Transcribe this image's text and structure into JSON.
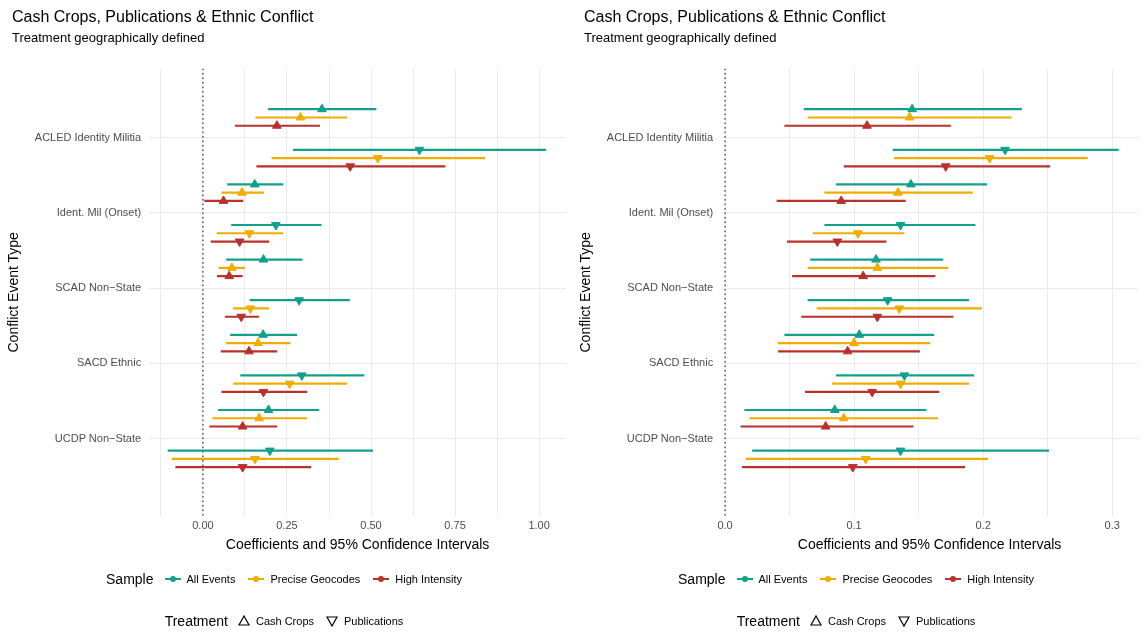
{
  "chart_data": [
    {
      "type": "scatter",
      "title": "Cash Crops, Publications & Ethnic Conflict",
      "subtitle": "Treatment geographically defined",
      "xlabel": "Coefficients and 95% Confidence Intervals",
      "ylabel": "Conflict Event Type",
      "orientation": "horizontal",
      "categories": [
        "ACLED Identity Militia",
        "Ident. Mil (Onset)",
        "SCAD Non−State",
        "SACD Ethnic",
        "UCDP Non−State"
      ],
      "xlim": [
        -0.16,
        1.08
      ],
      "xticks": [
        {
          "value": -0.125,
          "label": null
        },
        {
          "value": 0,
          "label": "0.00"
        },
        {
          "value": 0.125,
          "label": null
        },
        {
          "value": 0.25,
          "label": "0.25"
        },
        {
          "value": 0.375,
          "label": null
        },
        {
          "value": 0.5,
          "label": "0.50"
        },
        {
          "value": 0.625,
          "label": null
        },
        {
          "value": 0.75,
          "label": "0.75"
        },
        {
          "value": 0.875,
          "label": null
        },
        {
          "value": 1,
          "label": "1.00"
        }
      ],
      "grid": true,
      "legend": "bottom",
      "legend_title": "Sample",
      "annotations": [
        "Treatment",
        "Cash Crops",
        "Publications"
      ],
      "ref_lines": [
        {
          "axis": "x",
          "value": 0,
          "line_style": "dotted",
          "color": "#000000"
        }
      ],
      "series": [
        {
          "name": "All Events",
          "color": "#12a08c",
          "marker": "triangle",
          "values": [
            0.354,
            0.154,
            0.18,
            0.179,
            0.195
          ],
          "errors": [
            [
              0.194,
              0.516
            ],
            [
              0.072,
              0.239
            ],
            [
              0.069,
              0.296
            ],
            [
              0.081,
              0.28
            ],
            [
              0.045,
              0.346
            ]
          ]
        },
        {
          "name": "Precise Geocodes",
          "color": "#f0ac00",
          "marker": "triangle",
          "values": [
            0.29,
            0.116,
            0.086,
            0.164,
            0.167
          ],
          "errors": [
            [
              0.156,
              0.429
            ],
            [
              0.055,
              0.182
            ],
            [
              0.047,
              0.125
            ],
            [
              0.069,
              0.26
            ],
            [
              0.028,
              0.31
            ]
          ]
        },
        {
          "name": "High Intensity",
          "color": "#b8312b",
          "marker": "triangle",
          "values": [
            0.22,
            0.061,
            0.078,
            0.137,
            0.118
          ],
          "errors": [
            [
              0.095,
              0.348
            ],
            [
              0.004,
              0.12
            ],
            [
              0.042,
              0.118
            ],
            [
              0.053,
              0.221
            ],
            [
              0.019,
              0.221
            ]
          ]
        },
        {
          "color": "#12a08c",
          "marker": "triangle-down",
          "values": [
            0.644,
            0.217,
            0.286,
            0.294,
            0.199
          ],
          "errors": [
            [
              0.268,
              1.021
            ],
            [
              0.084,
              0.353
            ],
            [
              0.139,
              0.437
            ],
            [
              0.111,
              0.48
            ],
            [
              -0.105,
              0.506
            ]
          ]
        },
        {
          "color": "#f0ac00",
          "marker": "triangle-down",
          "values": [
            0.52,
            0.138,
            0.141,
            0.258,
            0.155
          ],
          "errors": [
            [
              0.204,
              0.839
            ],
            [
              0.041,
              0.239
            ],
            [
              0.089,
              0.197
            ],
            [
              0.09,
              0.429
            ],
            [
              -0.093,
              0.404
            ]
          ]
        },
        {
          "color": "#b8312b",
          "marker": "triangle-down",
          "values": [
            0.438,
            0.109,
            0.114,
            0.18,
            0.118
          ],
          "errors": [
            [
              0.159,
              0.721
            ],
            [
              0.023,
              0.197
            ],
            [
              0.065,
              0.167
            ],
            [
              0.055,
              0.31
            ],
            [
              -0.082,
              0.322
            ]
          ]
        }
      ]
    },
    {
      "type": "scatter",
      "title": "Cash Crops, Publications & Ethnic Conflict",
      "subtitle": "Treatment geographically defined",
      "xlabel": "Coefficients and 95% Confidence Intervals",
      "ylabel": "Conflict Event Type",
      "orientation": "horizontal",
      "categories": [
        "ACLED Identity Militia",
        "Ident. Mil (Onset)",
        "SCAD Non−State",
        "SACD Ethnic",
        "UCDP Non−State"
      ],
      "xlim": [
        -0.003,
        0.32
      ],
      "xticks": [
        {
          "value": 0,
          "label": "0.0"
        },
        {
          "value": 0.05,
          "label": null
        },
        0.1,
        {
          "value": 0.15,
          "label": null
        },
        0.2,
        {
          "value": 0.25,
          "label": null
        },
        0.3
      ],
      "grid": true,
      "legend": "bottom",
      "legend_title": "Sample",
      "annotations": [
        "Treatment",
        "Cash Crops",
        "Publications"
      ],
      "ref_lines": [
        {
          "axis": "x",
          "value": 0,
          "line_style": "dotted",
          "color": "#000000"
        }
      ],
      "series": [
        {
          "name": "All Events",
          "color": "#12a08c",
          "marker": "triangle",
          "values": [
            0.145,
            0.144,
            0.117,
            0.104,
            0.085
          ],
          "errors": [
            [
              0.061,
              0.23
            ],
            [
              0.086,
              0.203
            ],
            [
              0.066,
              0.169
            ],
            [
              0.046,
              0.162
            ],
            [
              0.015,
              0.156
            ]
          ]
        },
        {
          "name": "Precise Geocodes",
          "color": "#f0ac00",
          "marker": "triangle",
          "values": [
            0.143,
            0.134,
            0.118,
            0.1,
            0.092
          ],
          "errors": [
            [
              0.064,
              0.222
            ],
            [
              0.077,
              0.192
            ],
            [
              0.064,
              0.173
            ],
            [
              0.041,
              0.159
            ],
            [
              0.019,
              0.165
            ]
          ]
        },
        {
          "name": "High Intensity",
          "color": "#b8312b",
          "marker": "triangle",
          "values": [
            0.11,
            0.09,
            0.107,
            0.095,
            0.078
          ],
          "errors": [
            [
              0.046,
              0.175
            ],
            [
              0.04,
              0.14
            ],
            [
              0.052,
              0.163
            ],
            [
              0.041,
              0.151
            ],
            [
              0.012,
              0.146
            ]
          ]
        },
        {
          "color": "#12a08c",
          "marker": "triangle-down",
          "values": [
            0.217,
            0.136,
            0.126,
            0.139,
            0.136
          ],
          "errors": [
            [
              0.13,
              0.305
            ],
            [
              0.077,
              0.194
            ],
            [
              0.064,
              0.189
            ],
            [
              0.086,
              0.193
            ],
            [
              0.021,
              0.251
            ]
          ]
        },
        {
          "color": "#f0ac00",
          "marker": "triangle-down",
          "values": [
            0.205,
            0.103,
            0.135,
            0.136,
            0.109
          ],
          "errors": [
            [
              0.131,
              0.281
            ],
            [
              0.068,
              0.139
            ],
            [
              0.071,
              0.199
            ],
            [
              0.083,
              0.189
            ],
            [
              0.016,
              0.204
            ]
          ]
        },
        {
          "color": "#b8312b",
          "marker": "triangle-down",
          "values": [
            0.171,
            0.087,
            0.118,
            0.114,
            0.099
          ],
          "errors": [
            [
              0.092,
              0.252
            ],
            [
              0.048,
              0.125
            ],
            [
              0.059,
              0.177
            ],
            [
              0.062,
              0.166
            ],
            [
              0.013,
              0.186
            ]
          ]
        }
      ]
    }
  ]
}
